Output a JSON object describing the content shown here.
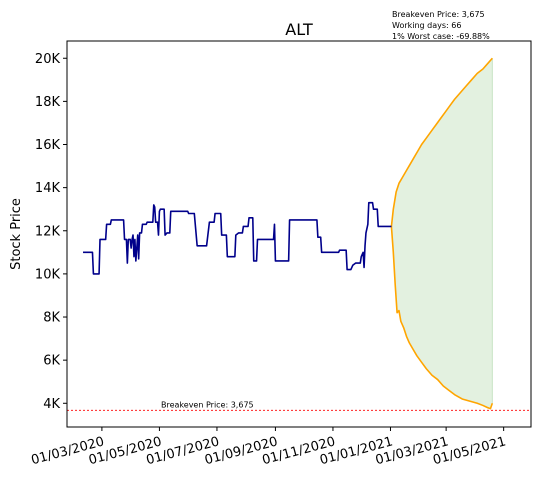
{
  "chart_data": {
    "type": "line",
    "title": "ALT",
    "ylabel": "Stock Price",
    "xlabel": "",
    "xlim": [
      "2020-01-24",
      "2021-05-30"
    ],
    "ylim": [
      2900,
      20800
    ],
    "x_ticks": [
      "01/03/2020",
      "01/05/2020",
      "01/07/2020",
      "01/09/2020",
      "01/11/2020",
      "01/01/2021",
      "01/03/2021",
      "01/05/2021"
    ],
    "y_ticks": [
      {
        "value": 4000,
        "label": "4K"
      },
      {
        "value": 6000,
        "label": "6K"
      },
      {
        "value": 8000,
        "label": "8K"
      },
      {
        "value": 10000,
        "label": "10K"
      },
      {
        "value": 12000,
        "label": "12K"
      },
      {
        "value": 14000,
        "label": "14K"
      },
      {
        "value": 16000,
        "label": "16K"
      },
      {
        "value": 18000,
        "label": "18K"
      },
      {
        "value": 20000,
        "label": "20K"
      }
    ],
    "annotations": {
      "breakeven_label": "Breakeven Price: 3,675",
      "info_lines": [
        "Breakeven Price: 3,675",
        "Working days: 66",
        "1% Worst case: -69.88%"
      ]
    },
    "breakeven": 3675,
    "colors": {
      "history": "#00008b",
      "forecast": "#ffa500",
      "fill": "#e3f1e0",
      "fill_edge": "#c8e3c4",
      "breakeven": "#ff0000"
    },
    "series": [
      {
        "role": "history",
        "points": [
          [
            "2020-02-10",
            11000
          ],
          [
            "2020-02-20",
            11000
          ],
          [
            "2020-02-21",
            10000
          ],
          [
            "2020-02-27",
            10000
          ],
          [
            "2020-02-28",
            11600
          ],
          [
            "2020-03-05",
            11600
          ],
          [
            "2020-03-06",
            12300
          ],
          [
            "2020-03-10",
            12300
          ],
          [
            "2020-03-11",
            12500
          ],
          [
            "2020-03-24",
            12500
          ],
          [
            "2020-03-25",
            11600
          ],
          [
            "2020-03-27",
            11600
          ],
          [
            "2020-03-28",
            10500
          ],
          [
            "2020-03-29",
            11600
          ],
          [
            "2020-03-31",
            11600
          ],
          [
            "2020-04-01",
            11200
          ],
          [
            "2020-04-02",
            11600
          ],
          [
            "2020-04-03",
            11800
          ],
          [
            "2020-04-04",
            10800
          ],
          [
            "2020-04-05",
            11600
          ],
          [
            "2020-04-06",
            10600
          ],
          [
            "2020-04-08",
            11800
          ],
          [
            "2020-04-09",
            10700
          ],
          [
            "2020-04-10",
            11900
          ],
          [
            "2020-04-12",
            11900
          ],
          [
            "2020-04-13",
            12300
          ],
          [
            "2020-04-17",
            12300
          ],
          [
            "2020-04-18",
            12400
          ],
          [
            "2020-04-24",
            12400
          ],
          [
            "2020-04-25",
            13200
          ],
          [
            "2020-04-26",
            13100
          ],
          [
            "2020-04-27",
            12400
          ],
          [
            "2020-04-29",
            12400
          ],
          [
            "2020-04-30",
            11800
          ],
          [
            "2020-05-01",
            12900
          ],
          [
            "2020-05-02",
            13000
          ],
          [
            "2020-05-06",
            13000
          ],
          [
            "2020-05-07",
            11800
          ],
          [
            "2020-05-09",
            11900
          ],
          [
            "2020-05-12",
            11900
          ],
          [
            "2020-05-13",
            12900
          ],
          [
            "2020-05-31",
            12900
          ],
          [
            "2020-06-01",
            12800
          ],
          [
            "2020-06-07",
            12800
          ],
          [
            "2020-06-10",
            11300
          ],
          [
            "2020-06-20",
            11300
          ],
          [
            "2020-06-23",
            12400
          ],
          [
            "2020-06-28",
            12400
          ],
          [
            "2020-06-29",
            12800
          ],
          [
            "2020-07-05",
            12800
          ],
          [
            "2020-07-06",
            11800
          ],
          [
            "2020-07-11",
            11800
          ],
          [
            "2020-07-12",
            10800
          ],
          [
            "2020-07-20",
            10800
          ],
          [
            "2020-07-21",
            11800
          ],
          [
            "2020-07-24",
            11900
          ],
          [
            "2020-07-28",
            11900
          ],
          [
            "2020-07-29",
            12200
          ],
          [
            "2020-08-03",
            12200
          ],
          [
            "2020-08-04",
            12600
          ],
          [
            "2020-08-08",
            12600
          ],
          [
            "2020-08-09",
            10600
          ],
          [
            "2020-08-12",
            10600
          ],
          [
            "2020-08-13",
            11600
          ],
          [
            "2020-08-30",
            11600
          ],
          [
            "2020-08-31",
            12300
          ],
          [
            "2020-09-01",
            10600
          ],
          [
            "2020-09-05",
            10600
          ],
          [
            "2020-09-06",
            10600
          ],
          [
            "2020-09-15",
            10600
          ],
          [
            "2020-09-16",
            12500
          ],
          [
            "2020-10-15",
            12500
          ],
          [
            "2020-10-16",
            11700
          ],
          [
            "2020-10-19",
            11700
          ],
          [
            "2020-10-20",
            11000
          ],
          [
            "2020-11-07",
            11000
          ],
          [
            "2020-11-08",
            11100
          ],
          [
            "2020-11-15",
            11100
          ],
          [
            "2020-11-16",
            10200
          ],
          [
            "2020-11-20",
            10200
          ],
          [
            "2020-11-22",
            10400
          ],
          [
            "2020-11-25",
            10500
          ],
          [
            "2020-11-30",
            10500
          ],
          [
            "2020-12-01",
            10800
          ],
          [
            "2020-12-03",
            11000
          ],
          [
            "2020-12-04",
            10300
          ],
          [
            "2020-12-05",
            11300
          ],
          [
            "2020-12-06",
            11900
          ],
          [
            "2020-12-08",
            12300
          ],
          [
            "2020-12-09",
            13300
          ],
          [
            "2020-12-13",
            13300
          ],
          [
            "2020-12-14",
            13000
          ],
          [
            "2020-12-18",
            13000
          ],
          [
            "2020-12-19",
            12200
          ],
          [
            "2021-01-02",
            12200
          ]
        ]
      },
      {
        "role": "forecast-upper",
        "points": [
          [
            "2021-01-02",
            12200
          ],
          [
            "2021-01-04",
            13000
          ],
          [
            "2021-01-07",
            13800
          ],
          [
            "2021-01-10",
            14200
          ],
          [
            "2021-01-14",
            14500
          ],
          [
            "2021-01-18",
            14800
          ],
          [
            "2021-01-22",
            15100
          ],
          [
            "2021-01-26",
            15400
          ],
          [
            "2021-01-30",
            15700
          ],
          [
            "2021-02-03",
            16000
          ],
          [
            "2021-02-08",
            16300
          ],
          [
            "2021-02-13",
            16600
          ],
          [
            "2021-02-18",
            16900
          ],
          [
            "2021-02-23",
            17200
          ],
          [
            "2021-02-28",
            17500
          ],
          [
            "2021-03-05",
            17800
          ],
          [
            "2021-03-10",
            18100
          ],
          [
            "2021-03-16",
            18400
          ],
          [
            "2021-03-22",
            18700
          ],
          [
            "2021-03-28",
            19000
          ],
          [
            "2021-04-03",
            19300
          ],
          [
            "2021-04-09",
            19500
          ],
          [
            "2021-04-15",
            19800
          ],
          [
            "2021-04-19",
            20000
          ]
        ]
      },
      {
        "role": "forecast-lower",
        "points": [
          [
            "2021-01-02",
            12200
          ],
          [
            "2021-01-04",
            11000
          ],
          [
            "2021-01-06",
            9500
          ],
          [
            "2021-01-08",
            8200
          ],
          [
            "2021-01-10",
            8300
          ],
          [
            "2021-01-12",
            7800
          ],
          [
            "2021-01-15",
            7500
          ],
          [
            "2021-01-18",
            7100
          ],
          [
            "2021-01-21",
            6800
          ],
          [
            "2021-01-25",
            6500
          ],
          [
            "2021-01-29",
            6200
          ],
          [
            "2021-02-03",
            5900
          ],
          [
            "2021-02-08",
            5600
          ],
          [
            "2021-02-14",
            5300
          ],
          [
            "2021-02-20",
            5100
          ],
          [
            "2021-02-26",
            4800
          ],
          [
            "2021-03-04",
            4600
          ],
          [
            "2021-03-10",
            4400
          ],
          [
            "2021-03-18",
            4200
          ],
          [
            "2021-03-26",
            4100
          ],
          [
            "2021-04-03",
            4000
          ],
          [
            "2021-04-09",
            3900
          ],
          [
            "2021-04-14",
            3800
          ],
          [
            "2021-04-17",
            3750
          ],
          [
            "2021-04-19",
            4000
          ]
        ]
      }
    ]
  }
}
